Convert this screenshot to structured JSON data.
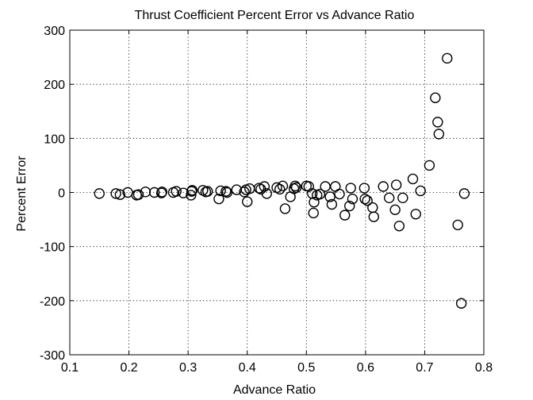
{
  "chart_data": {
    "type": "scatter",
    "title": "Thrust Coefficient Percent Error vs Advance Ratio",
    "xlabel": "Advance Ratio",
    "ylabel": "Percent Error",
    "xlim": [
      0.1,
      0.8
    ],
    "ylim": [
      -300,
      300
    ],
    "xticks": [
      "0.1",
      "0.2",
      "0.3",
      "0.4",
      "0.5",
      "0.6",
      "0.7",
      "0.8"
    ],
    "yticks": [
      "-300",
      "-200",
      "-100",
      "0",
      "100",
      "200",
      "300"
    ],
    "grid": true,
    "marker": "open-circle",
    "marker_color": "#000000",
    "series": [
      {
        "points": [
          [
            0.15,
            -2
          ],
          [
            0.178,
            -2
          ],
          [
            0.185,
            -4
          ],
          [
            0.198,
            0
          ],
          [
            0.213,
            -5
          ],
          [
            0.216,
            -4
          ],
          [
            0.228,
            1
          ],
          [
            0.243,
            0
          ],
          [
            0.255,
            -1
          ],
          [
            0.256,
            1
          ],
          [
            0.275,
            0
          ],
          [
            0.28,
            2
          ],
          [
            0.292,
            -1
          ],
          [
            0.305,
            -5
          ],
          [
            0.306,
            2
          ],
          [
            0.307,
            4
          ],
          [
            0.325,
            4
          ],
          [
            0.33,
            1
          ],
          [
            0.333,
            2
          ],
          [
            0.352,
            -12
          ],
          [
            0.355,
            3
          ],
          [
            0.364,
            2
          ],
          [
            0.366,
            0
          ],
          [
            0.382,
            5
          ],
          [
            0.395,
            1
          ],
          [
            0.398,
            5
          ],
          [
            0.4,
            -17
          ],
          [
            0.404,
            7
          ],
          [
            0.42,
            8
          ],
          [
            0.423,
            6
          ],
          [
            0.429,
            11
          ],
          [
            0.433,
            -2
          ],
          [
            0.45,
            9
          ],
          [
            0.455,
            6
          ],
          [
            0.46,
            12
          ],
          [
            0.464,
            -30
          ],
          [
            0.473,
            -8
          ],
          [
            0.479,
            7
          ],
          [
            0.481,
            12
          ],
          [
            0.483,
            9
          ],
          [
            0.5,
            12
          ],
          [
            0.504,
            11
          ],
          [
            0.51,
            -2
          ],
          [
            0.512,
            -38
          ],
          [
            0.513,
            -18
          ],
          [
            0.518,
            -5
          ],
          [
            0.523,
            -3
          ],
          [
            0.532,
            11
          ],
          [
            0.54,
            -8
          ],
          [
            0.543,
            -22
          ],
          [
            0.549,
            11
          ],
          [
            0.556,
            -3
          ],
          [
            0.565,
            -42
          ],
          [
            0.573,
            -25
          ],
          [
            0.575,
            8
          ],
          [
            0.578,
            -12
          ],
          [
            0.598,
            8
          ],
          [
            0.599,
            -12
          ],
          [
            0.603,
            -15
          ],
          [
            0.612,
            -28
          ],
          [
            0.614,
            -45
          ],
          [
            0.63,
            11
          ],
          [
            0.64,
            -10
          ],
          [
            0.65,
            -32
          ],
          [
            0.652,
            14
          ],
          [
            0.657,
            -62
          ],
          [
            0.663,
            -10
          ],
          [
            0.68,
            25
          ],
          [
            0.685,
            -40
          ],
          [
            0.693,
            3
          ],
          [
            0.708,
            50
          ],
          [
            0.718,
            175
          ],
          [
            0.722,
            130
          ],
          [
            0.724,
            108
          ],
          [
            0.738,
            248
          ],
          [
            0.756,
            -60
          ],
          [
            0.762,
            -205
          ],
          [
            0.767,
            -2
          ]
        ]
      }
    ]
  }
}
